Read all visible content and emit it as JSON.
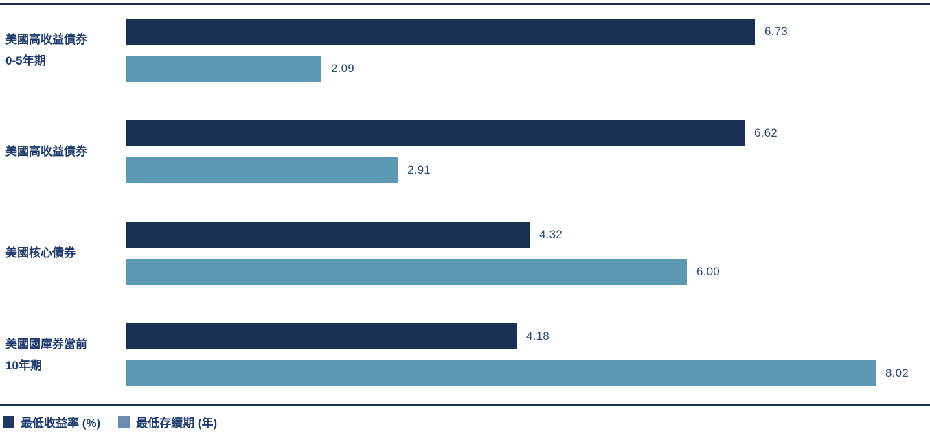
{
  "colors": {
    "rule": "#1a3053",
    "series_yield_bar": "#1a3053",
    "series_duration_bar": "#5b99b4",
    "legend_yield_swatch": "#1d3862",
    "legend_duration_swatch": "#6a8cb3",
    "category_text": "#1e3a6e",
    "value_text": "#2b4a7d"
  },
  "legend": {
    "items": [
      {
        "label": "最低收益率 (%)",
        "swatch_color": "#1d3862"
      },
      {
        "label": "最低存續期 (年)",
        "swatch_color": "#6a8cb3"
      }
    ]
  },
  "chart_data": {
    "type": "bar",
    "orientation": "horizontal",
    "title": "",
    "xlabel": "",
    "ylabel": "",
    "xlim": [
      0,
      8.6
    ],
    "grid": false,
    "legend_position": "bottom-left",
    "categories": [
      [
        "美國高收益債券",
        "0-5年期"
      ],
      [
        "美國高收益債券"
      ],
      [
        "美國核心債券"
      ],
      [
        "美國國庫券當前",
        "10年期"
      ]
    ],
    "series": [
      {
        "name": "最低收益率 (%)",
        "color": "#1a3053",
        "values": [
          6.73,
          6.62,
          4.32,
          4.18
        ],
        "value_labels": [
          "6.73",
          "6.62",
          "4.32",
          "4.18"
        ]
      },
      {
        "name": "最低存續期 (年)",
        "color": "#5b99b4",
        "values": [
          2.09,
          2.91,
          6.0,
          8.02
        ],
        "value_labels": [
          "2.09",
          "2.91",
          "6.00",
          "8.02"
        ]
      }
    ]
  }
}
